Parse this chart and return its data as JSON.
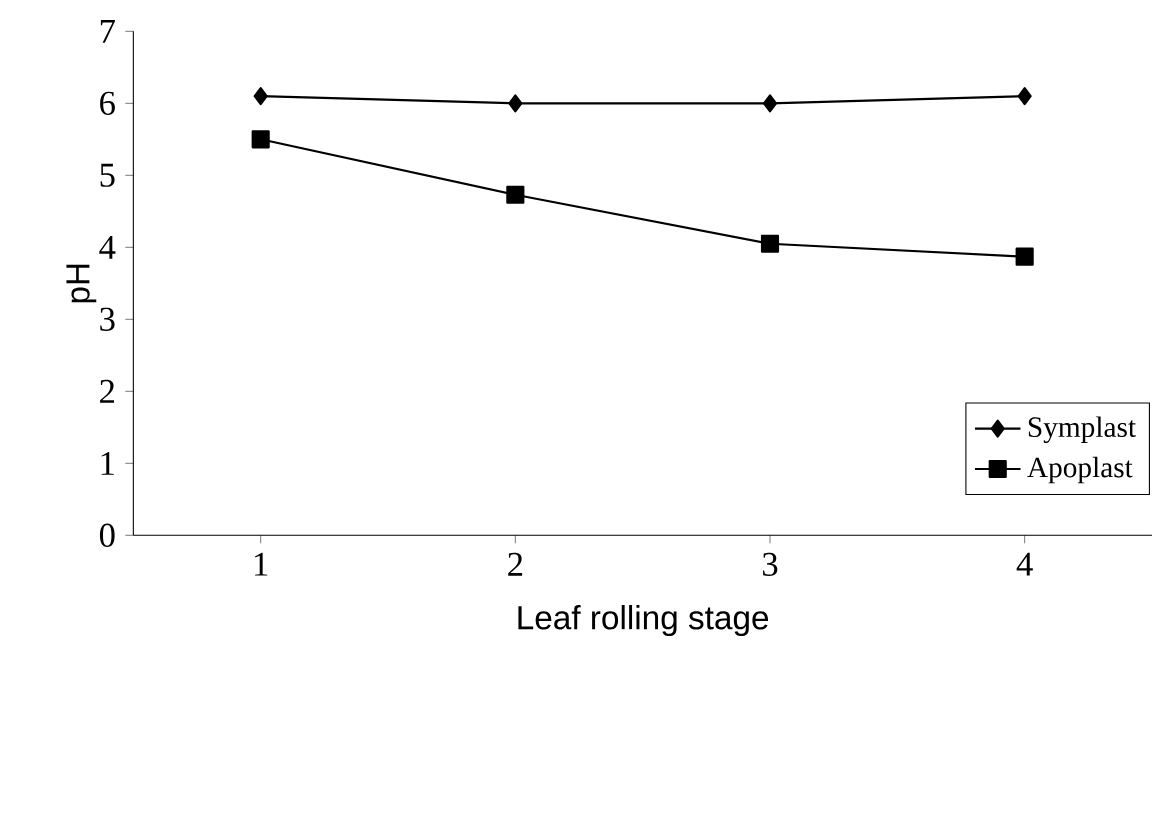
{
  "chart_data": {
    "type": "line",
    "xlabel": "Leaf rolling stage",
    "ylabel": "pH",
    "x": [
      1,
      2,
      3,
      4
    ],
    "xlim": [
      0.5,
      4.5
    ],
    "xticks": [
      1,
      2,
      3,
      4
    ],
    "ylim": [
      0,
      7
    ],
    "yticks": [
      0,
      1,
      2,
      3,
      4,
      5,
      6,
      7
    ],
    "series": [
      {
        "name": "Symplast",
        "color": "#000000",
        "marker": "diamond",
        "values": [
          6.1,
          6.0,
          6.0,
          6.1
        ]
      },
      {
        "name": "Apoplast",
        "color": "#000000",
        "marker": "square",
        "values": [
          5.5,
          4.73,
          4.05,
          3.87
        ]
      }
    ],
    "legend": "bottom right",
    "grid": false,
    "line_style": "solid"
  }
}
